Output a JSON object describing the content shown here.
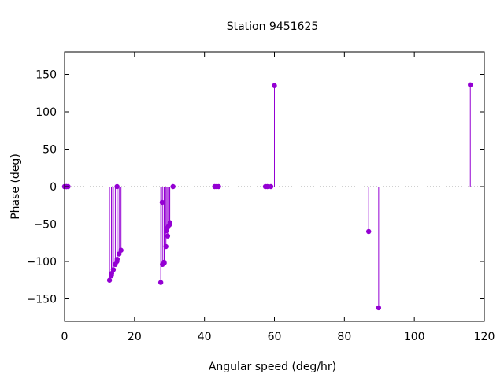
{
  "chart_data": {
    "type": "scatter",
    "style": "impulses-with-points",
    "title": "Station 9451625",
    "xlabel": "Angular speed (deg/hr)",
    "ylabel": "Phase (deg)",
    "xlim": [
      0,
      120
    ],
    "ylim": [
      -180,
      180
    ],
    "xticks": [
      0,
      20,
      40,
      60,
      80,
      100,
      120
    ],
    "yticks": [
      -150,
      -100,
      -50,
      0,
      50,
      100,
      150
    ],
    "grid": false,
    "legend": "none",
    "color": "#9400d3",
    "points": [
      {
        "x": 0.0,
        "y": 0
      },
      {
        "x": 0.04,
        "y": 0
      },
      {
        "x": 0.08,
        "y": 0
      },
      {
        "x": 0.5,
        "y": 0
      },
      {
        "x": 0.55,
        "y": 0
      },
      {
        "x": 1.0,
        "y": 0
      },
      {
        "x": 12.85,
        "y": -125
      },
      {
        "x": 13.4,
        "y": -119
      },
      {
        "x": 13.47,
        "y": -116
      },
      {
        "x": 13.94,
        "y": -111
      },
      {
        "x": 14.5,
        "y": -104
      },
      {
        "x": 14.96,
        "y": -100
      },
      {
        "x": 15.04,
        "y": -97
      },
      {
        "x": 15.0,
        "y": 0
      },
      {
        "x": 15.59,
        "y": -90
      },
      {
        "x": 16.14,
        "y": -85
      },
      {
        "x": 27.5,
        "y": -128
      },
      {
        "x": 27.9,
        "y": -21
      },
      {
        "x": 27.97,
        "y": -104
      },
      {
        "x": 28.44,
        "y": -101
      },
      {
        "x": 28.51,
        "y": -102
      },
      {
        "x": 28.98,
        "y": -80
      },
      {
        "x": 29.08,
        "y": -59
      },
      {
        "x": 29.46,
        "y": -66
      },
      {
        "x": 29.53,
        "y": -54
      },
      {
        "x": 29.96,
        "y": -51
      },
      {
        "x": 30.08,
        "y": -48
      },
      {
        "x": 31.0,
        "y": 0
      },
      {
        "x": 42.93,
        "y": 0
      },
      {
        "x": 43.48,
        "y": 0
      },
      {
        "x": 44.03,
        "y": 0
      },
      {
        "x": 57.42,
        "y": 0
      },
      {
        "x": 57.97,
        "y": 0
      },
      {
        "x": 58.98,
        "y": 0
      },
      {
        "x": 60.0,
        "y": 135
      },
      {
        "x": 86.95,
        "y": -60
      },
      {
        "x": 89.8,
        "y": -162
      },
      {
        "x": 116.0,
        "y": 136
      }
    ]
  }
}
